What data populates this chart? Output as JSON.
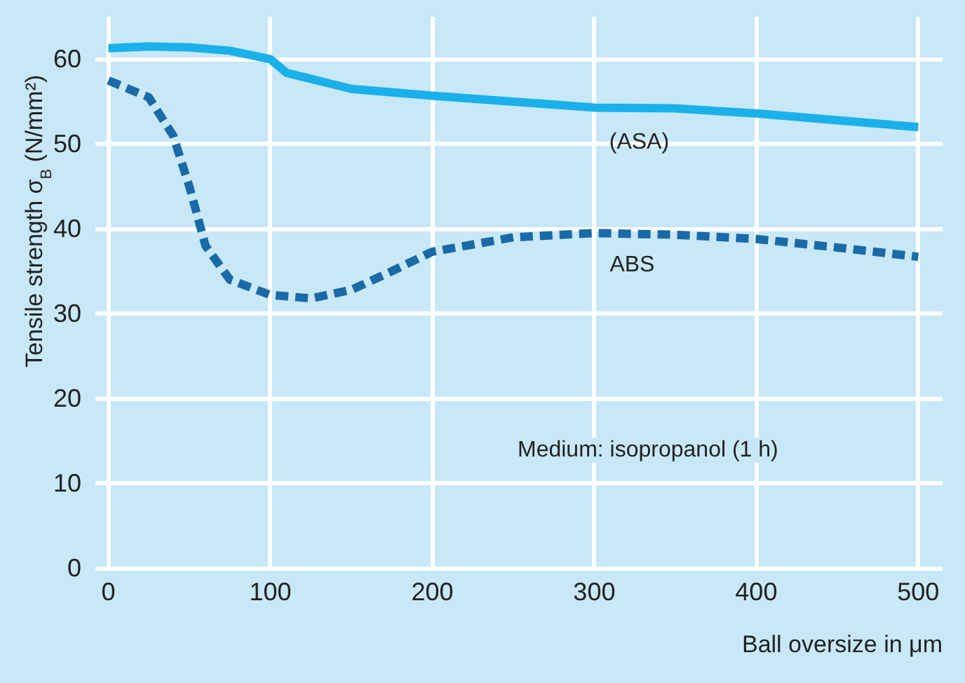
{
  "chart_data": {
    "type": "line",
    "xlabel": "Ball oversize in μm",
    "ylabel": "Tensile strength σ$_{B}$ (N/mm²)",
    "annotations": [
      "Medium: isopropanol (1 h)"
    ],
    "series": [
      {
        "name": "(ASA)",
        "color": "#1ab0ea",
        "line_style": "solid",
        "x": [
          0,
          25,
          50,
          75,
          100,
          110,
          150,
          200,
          250,
          300,
          350,
          400,
          450,
          500
        ],
        "values": [
          61.3,
          61.5,
          61.4,
          61,
          60,
          58.4,
          56.5,
          55.7,
          55,
          54.3,
          54.2,
          53.6,
          52.8,
          52
        ]
      },
      {
        "name": "ABS",
        "color": "#1a6aa8",
        "line_style": "dashed",
        "x": [
          0,
          25,
          40,
          50,
          60,
          75,
          100,
          125,
          150,
          175,
          200,
          250,
          300,
          350,
          400,
          450,
          500
        ],
        "values": [
          57.5,
          55.5,
          51,
          45,
          38,
          34,
          32.2,
          31.8,
          32.8,
          35,
          37.3,
          39,
          39.5,
          39.3,
          38.8,
          37.8,
          36.7
        ]
      }
    ],
    "xlim": [
      -8,
      515
    ],
    "ylim": [
      0,
      65
    ],
    "xticks": [
      0,
      100,
      200,
      300,
      400,
      500
    ],
    "yticks": [
      0,
      10,
      20,
      30,
      40,
      50,
      60
    ],
    "grid": true,
    "marker": "none",
    "legend": false
  }
}
